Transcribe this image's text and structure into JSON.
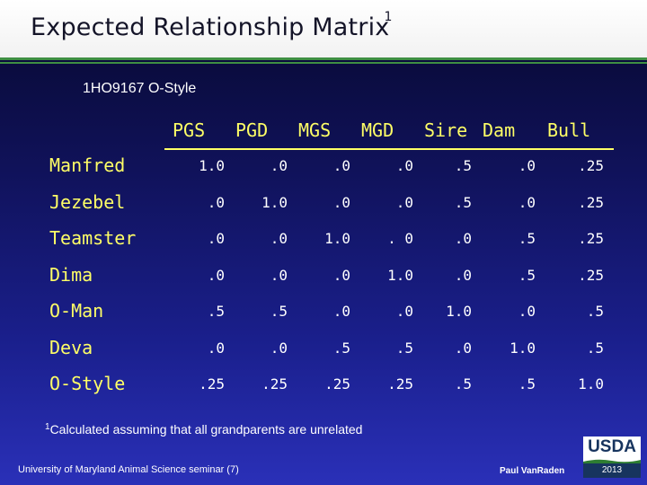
{
  "title": "Expected Relationship Matrix",
  "title_footnote_mark": "1",
  "subtitle": "1HO9167 O-Style",
  "columns": [
    "PGS",
    "PGD",
    "MGS",
    "MGD",
    "Sire",
    "Dam",
    "Bull"
  ],
  "rows": [
    {
      "label": "Manfred",
      "values": [
        "1.0",
        ".0",
        ".0",
        ".0",
        ".5",
        ".0",
        ".25"
      ]
    },
    {
      "label": "Jezebel",
      "values": [
        ".0",
        "1.0",
        ".0",
        ".0",
        ".5",
        ".0",
        ".25"
      ]
    },
    {
      "label": "Teamster",
      "values": [
        ".0",
        ".0",
        "1.0",
        ". 0",
        ".0",
        ".5",
        ".25"
      ]
    },
    {
      "label": "Dima",
      "values": [
        ".0",
        ".0",
        ".0",
        "1.0",
        ".0",
        ".5",
        ".25"
      ]
    },
    {
      "label": "O-Man",
      "values": [
        ".5",
        ".5",
        ".0",
        ".0",
        "1.0",
        ".0",
        ".5"
      ]
    },
    {
      "label": "Deva",
      "values": [
        ".0",
        ".0",
        ".5",
        ".5",
        ".0",
        "1.0",
        ".5"
      ]
    },
    {
      "label": "O-Style",
      "values": [
        ".25",
        ".25",
        ".25",
        ".25",
        ".5",
        ".5",
        "1.0"
      ]
    }
  ],
  "footnote": {
    "mark": "1",
    "text": "Calculated assuming that all grandparents are unrelated"
  },
  "footer": {
    "left": "University of Maryland Animal Science seminar (7)",
    "author": "Paul VanRaden",
    "logo_text": "USDA",
    "logo_year": "2013"
  },
  "colors": {
    "accent": "#ffff66",
    "rule": "#3f8f43",
    "background_top": "#07082e",
    "background_bottom": "#2a30b8"
  }
}
